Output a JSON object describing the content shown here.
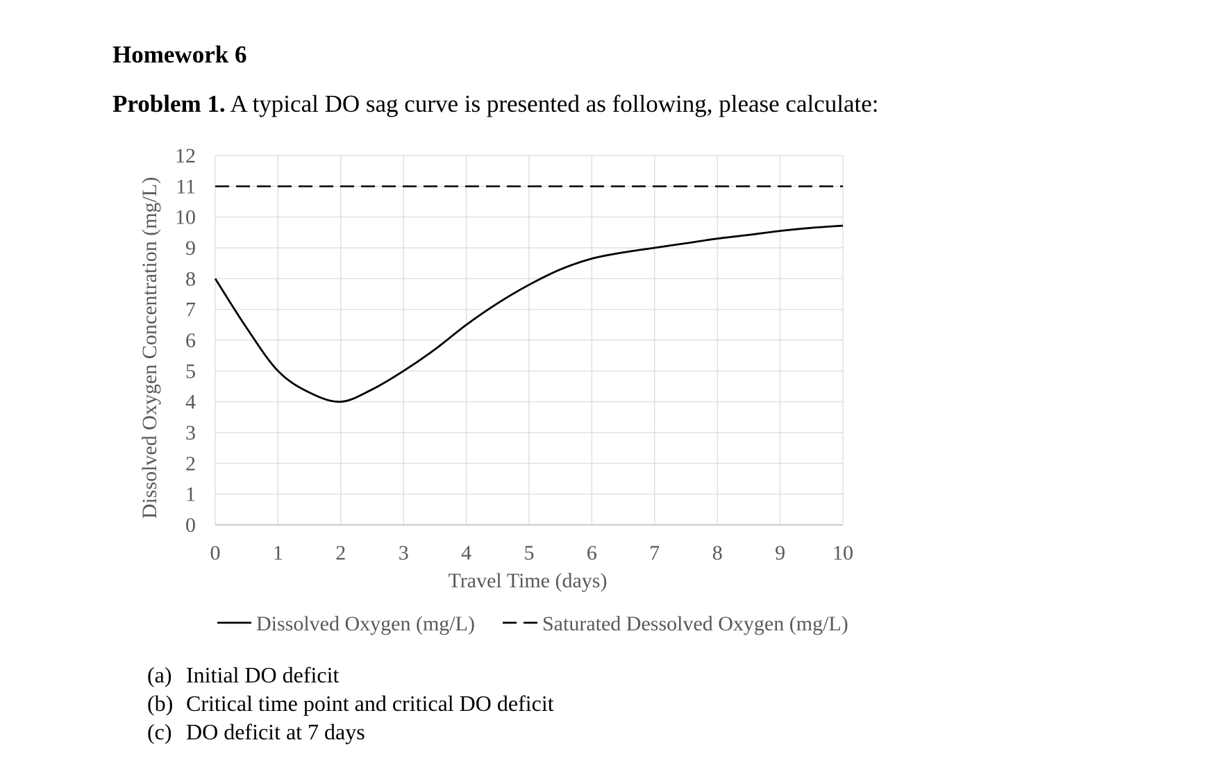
{
  "document": {
    "heading": "Homework 6",
    "problem": {
      "label": "Problem 1.",
      "text": " A typical DO sag curve is presented as following, please calculate:"
    },
    "tasks": [
      {
        "marker": "(a)",
        "text": "Initial DO deficit"
      },
      {
        "marker": "(b)",
        "text": "Critical time point and critical DO deficit"
      },
      {
        "marker": "(c)",
        "text": "DO deficit at 7 days"
      }
    ]
  },
  "chart_data": {
    "type": "line",
    "title": "",
    "xlabel": "Travel Time (days)",
    "ylabel": "Dissolved Oxygen Concentration (mg/L)",
    "xlim": [
      0,
      10
    ],
    "ylim": [
      0,
      12
    ],
    "xticks": [
      "0",
      "1",
      "2",
      "3",
      "4",
      "5",
      "6",
      "7",
      "8",
      "9",
      "10"
    ],
    "yticks": [
      "0",
      "1",
      "2",
      "3",
      "4",
      "5",
      "6",
      "7",
      "8",
      "9",
      "10",
      "11",
      "12"
    ],
    "grid": true,
    "legend_position": "bottom",
    "series": [
      {
        "name": "Dissolved Oxygen (mg/L)",
        "style": "solid",
        "color": "#000000",
        "x": [
          0,
          0.5,
          1,
          1.5,
          2,
          2.5,
          3,
          3.5,
          4,
          4.5,
          5,
          5.5,
          6,
          6.5,
          7,
          7.5,
          8,
          8.5,
          9,
          9.5,
          10
        ],
        "y": [
          8.0,
          6.4,
          5.0,
          4.3,
          4.0,
          4.4,
          5.0,
          5.7,
          6.5,
          7.2,
          7.8,
          8.3,
          8.65,
          8.85,
          9.0,
          9.15,
          9.3,
          9.42,
          9.55,
          9.65,
          9.72
        ]
      },
      {
        "name": "Saturated Dessolved Oxygen (mg/L)",
        "style": "dashed",
        "color": "#000000",
        "x": [
          0,
          10
        ],
        "y": [
          11,
          11
        ]
      }
    ]
  }
}
